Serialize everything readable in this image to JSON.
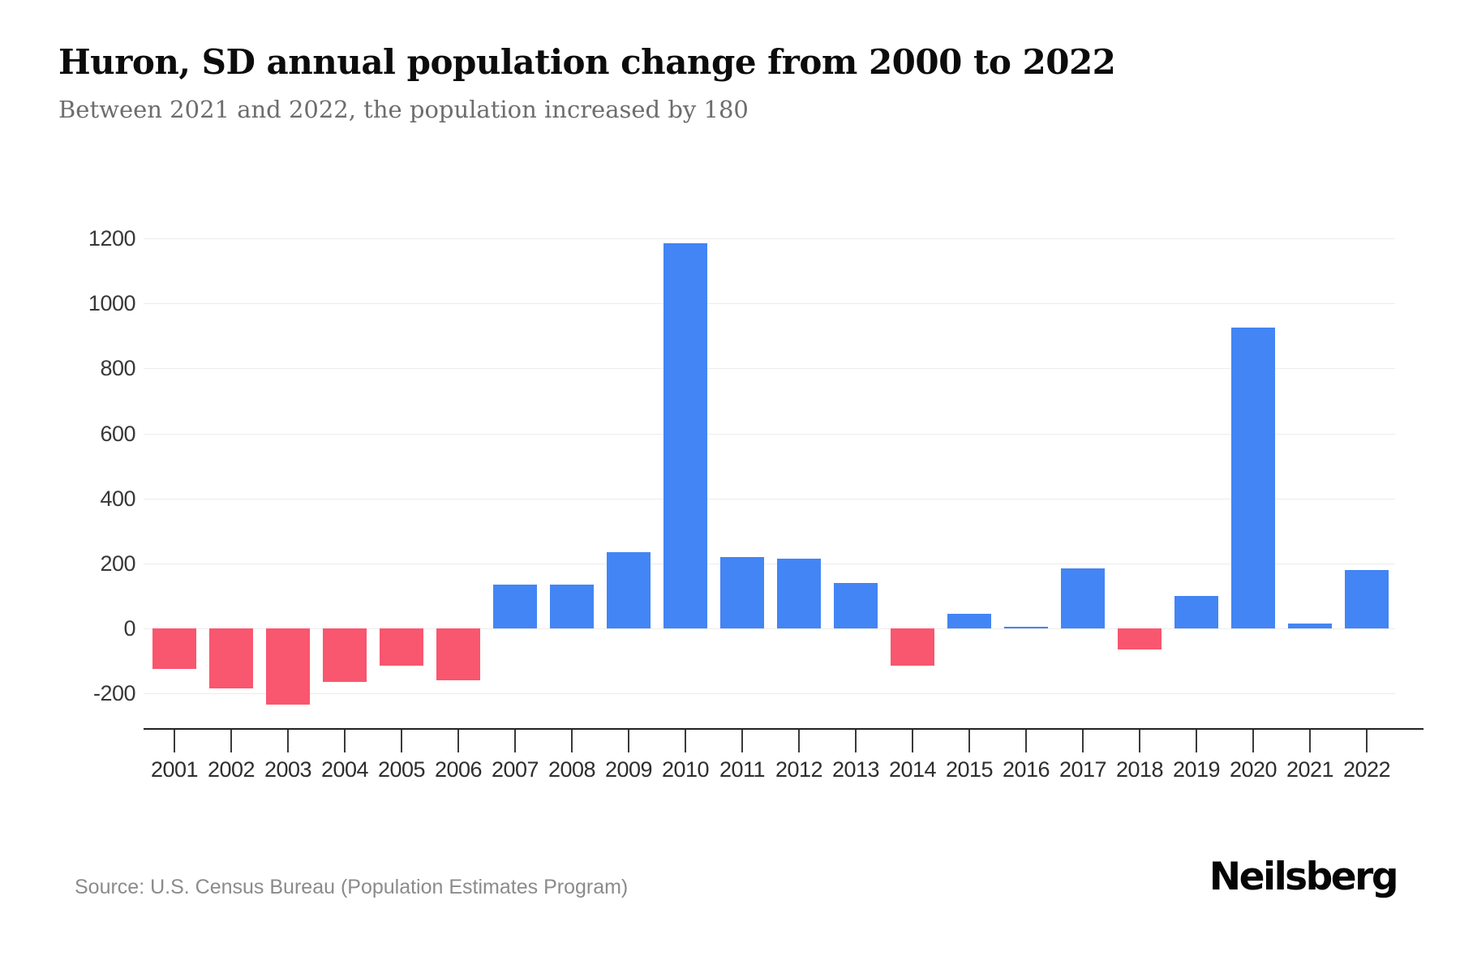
{
  "header": {
    "title": "Huron, SD annual population change from 2000 to 2022",
    "subtitle": "Between 2021 and 2022, the population increased by 180"
  },
  "chart_data": {
    "type": "bar",
    "title": "Huron, SD annual population change from 2000 to 2022",
    "xlabel": "",
    "ylabel": "",
    "categories": [
      "2001",
      "2002",
      "2003",
      "2004",
      "2005",
      "2006",
      "2007",
      "2008",
      "2009",
      "2010",
      "2011",
      "2012",
      "2013",
      "2014",
      "2015",
      "2016",
      "2017",
      "2018",
      "2019",
      "2020",
      "2021",
      "2022"
    ],
    "values": [
      -125,
      -185,
      -235,
      -165,
      -115,
      -160,
      135,
      135,
      235,
      1185,
      220,
      215,
      140,
      -115,
      45,
      5,
      185,
      -65,
      100,
      925,
      15,
      180
    ],
    "yticks": [
      1200,
      1000,
      800,
      600,
      400,
      200,
      0,
      -200
    ],
    "ylim": [
      -312,
      1335
    ],
    "grid": true,
    "legend": "none",
    "colors": {
      "positive": "#4385f4",
      "negative": "#f9566f"
    }
  },
  "footer": {
    "source": "Source: U.S. Census Bureau (Population Estimates Program)",
    "brand": "Neilsberg"
  }
}
